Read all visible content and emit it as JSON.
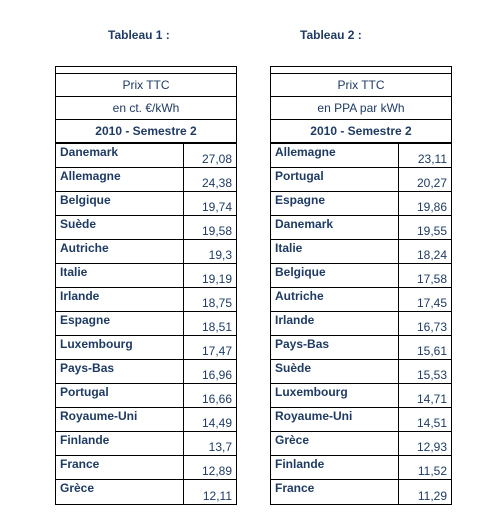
{
  "table1": {
    "caption": "Tableau 1 :",
    "header1": "Prix TTC",
    "header2": "en ct. €/kWh",
    "header3": "2010 - Semestre 2",
    "rows": [
      {
        "country": "Danemark",
        "value": "27,08"
      },
      {
        "country": "Allemagne",
        "value": "24,38"
      },
      {
        "country": "Belgique",
        "value": "19,74"
      },
      {
        "country": "Suède",
        "value": "19,58"
      },
      {
        "country": "Autriche",
        "value": "19,3"
      },
      {
        "country": "Italie",
        "value": "19,19"
      },
      {
        "country": "Irlande",
        "value": "18,75"
      },
      {
        "country": "Espagne",
        "value": "18,51"
      },
      {
        "country": "Luxembourg",
        "value": "17,47"
      },
      {
        "country": "Pays-Bas",
        "value": "16,96"
      },
      {
        "country": "Portugal",
        "value": "16,66"
      },
      {
        "country": "Royaume-Uni",
        "value": "14,49"
      },
      {
        "country": "Finlande",
        "value": "13,7"
      },
      {
        "country": "France",
        "value": "12,89"
      },
      {
        "country": "Grèce",
        "value": "12,11"
      }
    ]
  },
  "table2": {
    "caption": "Tableau 2 :",
    "header1": "Prix TTC",
    "header2": "en PPA par kWh",
    "header3": "2010 - Semestre 2",
    "rows": [
      {
        "country": "Allemagne",
        "value": "23,11"
      },
      {
        "country": "Portugal",
        "value": "20,27"
      },
      {
        "country": "Espagne",
        "value": "19,86"
      },
      {
        "country": "Danemark",
        "value": "19,55"
      },
      {
        "country": "Italie",
        "value": "18,24"
      },
      {
        "country": "Belgique",
        "value": "17,58"
      },
      {
        "country": "Autriche",
        "value": "17,45"
      },
      {
        "country": "Irlande",
        "value": "16,73"
      },
      {
        "country": "Pays-Bas",
        "value": "15,61"
      },
      {
        "country": "Suède",
        "value": "15,53"
      },
      {
        "country": "Luxembourg",
        "value": "14,71"
      },
      {
        "country": "Royaume-Uni",
        "value": "14,51"
      },
      {
        "country": "Grèce",
        "value": "12,93"
      },
      {
        "country": "Finlande",
        "value": "11,52"
      },
      {
        "country": "France",
        "value": "11,29"
      }
    ]
  }
}
